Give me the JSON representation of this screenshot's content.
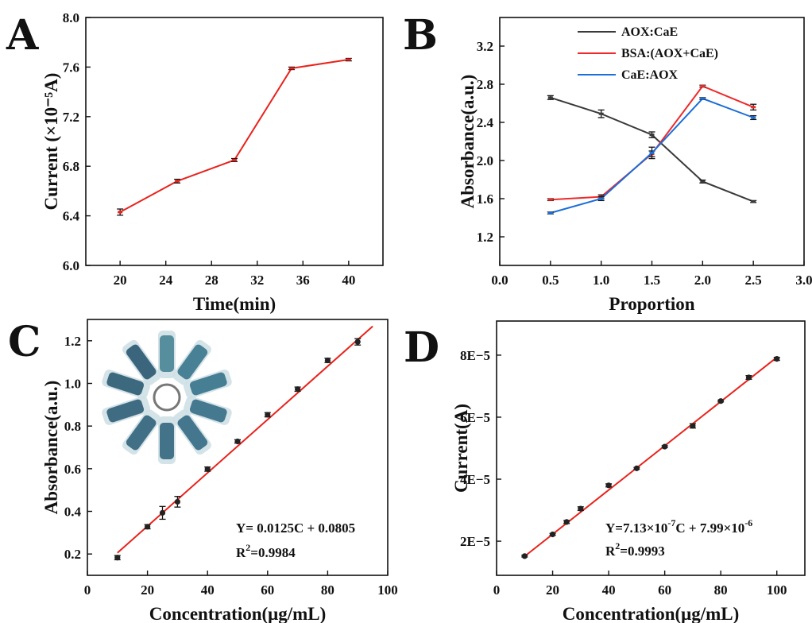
{
  "chart_data": [
    {
      "panel": "A",
      "type": "line",
      "xlabel": "Time(min)",
      "ylabel": "Current (×10⁻⁵A)",
      "xlim": [
        17,
        43
      ],
      "ylim": [
        6.0,
        8.0
      ],
      "xticks": [
        "20",
        "24",
        "28",
        "32",
        "36",
        "40"
      ],
      "yticks": [
        "6.0",
        "6.4",
        "6.8",
        "7.2",
        "7.6",
        "8.0"
      ],
      "series": [
        {
          "color": "#e8231c",
          "x": [
            20,
            25,
            30,
            35,
            40
          ],
          "y": [
            6.43,
            6.68,
            6.85,
            7.59,
            7.66
          ],
          "err": [
            0.025,
            0.015,
            0.012,
            0.01,
            0.01
          ]
        }
      ]
    },
    {
      "panel": "B",
      "type": "line",
      "xlabel": "Proportion",
      "ylabel": "Absorbance(a.u.)",
      "xlim": [
        0.0,
        3.0
      ],
      "ylim": [
        0.9,
        3.5
      ],
      "xticks": [
        "0.0",
        "0.5",
        "1.0",
        "1.5",
        "2.0",
        "2.5",
        "3.0"
      ],
      "yticks": [
        "1.2",
        "1.6",
        "2.0",
        "2.4",
        "2.8",
        "3.2"
      ],
      "legend_position": "top-right",
      "series": [
        {
          "name": "AOX:CaE",
          "color": "#3a3a3a",
          "x": [
            0.5,
            1.0,
            1.5,
            2.0,
            2.5
          ],
          "y": [
            2.66,
            2.49,
            2.27,
            1.78,
            1.57
          ],
          "err": [
            0.02,
            0.04,
            0.03,
            0.015,
            0.01
          ]
        },
        {
          "name": "BSA:(AOX+CaE)",
          "color": "#ee2a2a",
          "x": [
            0.5,
            1.0,
            1.5,
            2.0,
            2.5
          ],
          "y": [
            1.59,
            1.62,
            2.07,
            2.78,
            2.56
          ],
          "err": [
            0.01,
            0.02,
            0.03,
            0.01,
            0.03
          ]
        },
        {
          "name": "CaE:AOX",
          "color": "#1c6ed8",
          "x": [
            0.5,
            1.0,
            1.5,
            2.0,
            2.5
          ],
          "y": [
            1.45,
            1.6,
            2.08,
            2.65,
            2.45
          ],
          "err": [
            0.01,
            0.02,
            0.06,
            0.01,
            0.02
          ]
        }
      ]
    },
    {
      "panel": "C",
      "type": "scatter",
      "xlabel": "Concentration(μg/mL)",
      "ylabel": "Absorbance(a.u.)",
      "xlim": [
        0,
        100
      ],
      "ylim": [
        0.1,
        1.3
      ],
      "xticks": [
        "0",
        "20",
        "40",
        "60",
        "80",
        "100"
      ],
      "yticks": [
        "0.2",
        "0.4",
        "0.6",
        "0.8",
        "1.0",
        "1.2"
      ],
      "points": {
        "x": [
          10,
          20,
          25,
          30,
          40,
          50,
          60,
          70,
          80,
          90
        ],
        "y": [
          0.183,
          0.328,
          0.393,
          0.445,
          0.598,
          0.728,
          0.853,
          0.973,
          1.108,
          1.195
        ],
        "err": [
          0.01,
          0.01,
          0.03,
          0.025,
          0.01,
          0.008,
          0.01,
          0.01,
          0.01,
          0.015
        ]
      },
      "fit": {
        "slope": 0.0125,
        "intercept": 0.0805,
        "x_range": [
          10,
          95
        ],
        "color": "#e8231c"
      },
      "equation": "Y= 0.0125C + 0.0805",
      "r2_label": "R",
      "r2_sup": "2",
      "r2_value": "=0.9984",
      "inset": "photo of tubes with blue solutions arranged in a circle"
    },
    {
      "panel": "D",
      "type": "scatter",
      "xlabel": "Concentration(μg/mL)",
      "ylabel": "Current(A)",
      "xlim": [
        0,
        110
      ],
      "ylim": [
        9e-06,
        9.1e-05
      ],
      "xticks": [
        "0",
        "20",
        "40",
        "60",
        "80",
        "100"
      ],
      "yticks": [
        "2E−5",
        "4E−5",
        "6E−5",
        "8E−5"
      ],
      "points": {
        "x": [
          10,
          20,
          25,
          30,
          40,
          50,
          60,
          70,
          80,
          90,
          100
        ],
        "y": [
          1.52e-05,
          2.22e-05,
          2.62e-05,
          3.05e-05,
          3.8e-05,
          4.35e-05,
          5.05e-05,
          5.72e-05,
          6.52e-05,
          7.28e-05,
          7.88e-05
        ],
        "err": [
          3e-07,
          3e-07,
          5e-07,
          6e-07,
          5e-07,
          3e-07,
          3e-07,
          7e-07,
          3e-07,
          6e-07,
          5e-07
        ]
      },
      "fit": {
        "slope": 7.13e-07,
        "intercept": 7.99e-06,
        "x_range": [
          10,
          100
        ],
        "color": "#e8231c"
      },
      "equation_parts": [
        "Y=7.13×10",
        "-7",
        "C + 7.99×10",
        "-6"
      ],
      "r2_label": "R",
      "r2_sup": "2",
      "r2_value": "=0.9993"
    }
  ]
}
